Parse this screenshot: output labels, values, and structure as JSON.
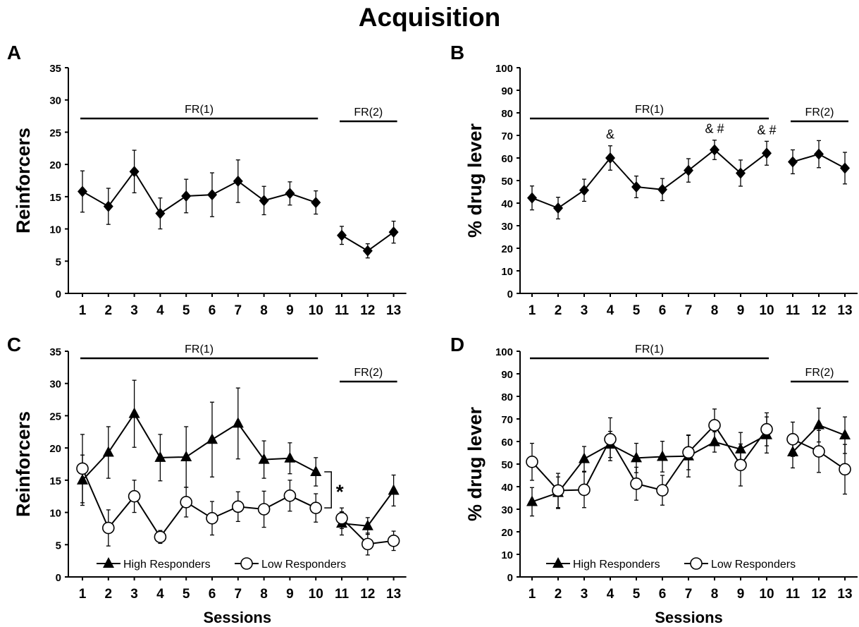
{
  "title": "Acquisition",
  "chart_data": [
    {
      "panel": "A",
      "type": "line",
      "ylabel": "Reinforcers",
      "xlabel": "",
      "ylim": [
        0,
        35
      ],
      "yticks": [
        0,
        5,
        10,
        15,
        20,
        25,
        30,
        35
      ],
      "categories": [
        "1",
        "2",
        "3",
        "4",
        "5",
        "6",
        "7",
        "8",
        "9",
        "10",
        "11",
        "12",
        "13"
      ],
      "phases": [
        {
          "label": "FR(1)",
          "from": "1",
          "to": "10"
        },
        {
          "label": "FR(2)",
          "from": "11",
          "to": "13"
        }
      ],
      "series": [
        {
          "marker": "diamond",
          "segments": [
            [
              0,
              9
            ],
            [
              10,
              12
            ]
          ],
          "values": [
            15.8,
            13.5,
            18.9,
            12.4,
            15.1,
            15.3,
            17.4,
            14.4,
            15.5,
            14.1,
            9.0,
            6.6,
            9.5
          ],
          "errors": [
            3.2,
            2.8,
            3.3,
            2.4,
            2.6,
            3.4,
            3.3,
            2.2,
            1.8,
            1.8,
            1.4,
            1.1,
            1.7
          ]
        }
      ],
      "annotations": []
    },
    {
      "panel": "B",
      "type": "line",
      "ylabel": "% drug lever",
      "xlabel": "",
      "ylim": [
        0,
        100
      ],
      "yticks": [
        0,
        10,
        20,
        30,
        40,
        50,
        60,
        70,
        80,
        90,
        100
      ],
      "categories": [
        "1",
        "2",
        "3",
        "4",
        "5",
        "6",
        "7",
        "8",
        "9",
        "10",
        "11",
        "12",
        "13"
      ],
      "phases": [
        {
          "label": "FR(1)",
          "from": "1",
          "to": "10"
        },
        {
          "label": "FR(2)",
          "from": "11",
          "to": "13"
        }
      ],
      "series": [
        {
          "marker": "diamond",
          "segments": [
            [
              0,
              9
            ],
            [
              10,
              12
            ]
          ],
          "values": [
            42.3,
            37.8,
            45.7,
            60.0,
            47.2,
            46.0,
            54.5,
            63.6,
            53.3,
            62.1,
            58.3,
            61.7,
            55.5
          ],
          "errors": [
            5.3,
            4.8,
            4.9,
            5.4,
            4.8,
            4.9,
            5.2,
            4.3,
            5.8,
            5.3,
            5.3,
            6.0,
            7.0
          ]
        }
      ],
      "annotations": [
        {
          "category": "4",
          "text": "&"
        },
        {
          "category": "8",
          "text": "& #"
        },
        {
          "category": "10",
          "text": "& #"
        }
      ]
    },
    {
      "panel": "C",
      "type": "line",
      "ylabel": "Reinforcers",
      "xlabel": "Sessions",
      "ylim": [
        0,
        35
      ],
      "yticks": [
        0,
        5,
        10,
        15,
        20,
        25,
        30,
        35
      ],
      "categories": [
        "1",
        "2",
        "3",
        "4",
        "5",
        "6",
        "7",
        "8",
        "9",
        "10",
        "11",
        "12",
        "13"
      ],
      "phases": [
        {
          "label": "FR(1)",
          "from": "1",
          "to": "10"
        },
        {
          "label": "FR(2)",
          "from": "11",
          "to": "13"
        }
      ],
      "significance": {
        "text": "*",
        "between": [
          9,
          10
        ]
      },
      "legend": "bottom",
      "series": [
        {
          "name": "High Responders",
          "marker": "triangle",
          "segments": [
            [
              0,
              9
            ],
            [
              10,
              12
            ]
          ],
          "values": [
            15.0,
            19.3,
            25.3,
            18.5,
            18.6,
            21.3,
            23.8,
            18.2,
            18.4,
            16.3,
            8.3,
            7.9,
            13.4
          ],
          "errors": [
            3.9,
            4.0,
            5.2,
            3.6,
            4.7,
            5.8,
            5.5,
            2.9,
            2.4,
            2.2,
            1.8,
            1.3,
            2.4
          ]
        },
        {
          "name": "Low Responders",
          "marker": "circle",
          "segments": [
            [
              0,
              9
            ],
            [
              10,
              12
            ]
          ],
          "values": [
            16.8,
            7.6,
            12.5,
            6.2,
            11.6,
            9.1,
            10.9,
            10.5,
            12.6,
            10.7,
            9.1,
            5.1,
            5.6
          ],
          "errors": [
            5.3,
            2.8,
            2.5,
            1.0,
            2.3,
            2.6,
            2.3,
            2.8,
            2.4,
            2.2,
            1.6,
            1.7,
            1.5
          ]
        }
      ],
      "annotations": []
    },
    {
      "panel": "D",
      "type": "line",
      "ylabel": "% drug lever",
      "xlabel": "Sessions",
      "ylim": [
        0,
        100
      ],
      "yticks": [
        0,
        10,
        20,
        30,
        40,
        50,
        60,
        70,
        80,
        90,
        100
      ],
      "categories": [
        "1",
        "2",
        "3",
        "4",
        "5",
        "6",
        "7",
        "8",
        "9",
        "10",
        "11",
        "12",
        "13"
      ],
      "phases": [
        {
          "label": "FR(1)",
          "from": "1",
          "to": "10"
        },
        {
          "label": "FR(2)",
          "from": "11",
          "to": "13"
        }
      ],
      "legend": "bottom",
      "series": [
        {
          "name": "High Responders",
          "marker": "triangle",
          "segments": [
            [
              0,
              9
            ],
            [
              10,
              12
            ]
          ],
          "values": [
            33.3,
            37.3,
            52.3,
            58.7,
            52.7,
            53.3,
            53.5,
            59.8,
            56.6,
            62.9,
            55.3,
            67.3,
            62.8
          ],
          "errors": [
            6.3,
            7.0,
            5.5,
            5.8,
            6.5,
            6.8,
            9.2,
            4.5,
            7.4,
            8.0,
            7.0,
            7.5,
            8.1
          ]
        },
        {
          "name": "Low Responders",
          "marker": "circle",
          "segments": [
            [
              0,
              9
            ],
            [
              10,
              12
            ]
          ],
          "values": [
            51.0,
            38.3,
            38.6,
            61.0,
            41.3,
            38.4,
            55.2,
            67.2,
            49.6,
            65.4,
            61.0,
            55.6,
            47.7
          ],
          "errors": [
            8.2,
            7.6,
            7.9,
            9.5,
            7.3,
            6.6,
            7.7,
            7.2,
            9.3,
            7.3,
            7.6,
            9.3,
            11.0
          ]
        }
      ],
      "annotations": []
    }
  ]
}
